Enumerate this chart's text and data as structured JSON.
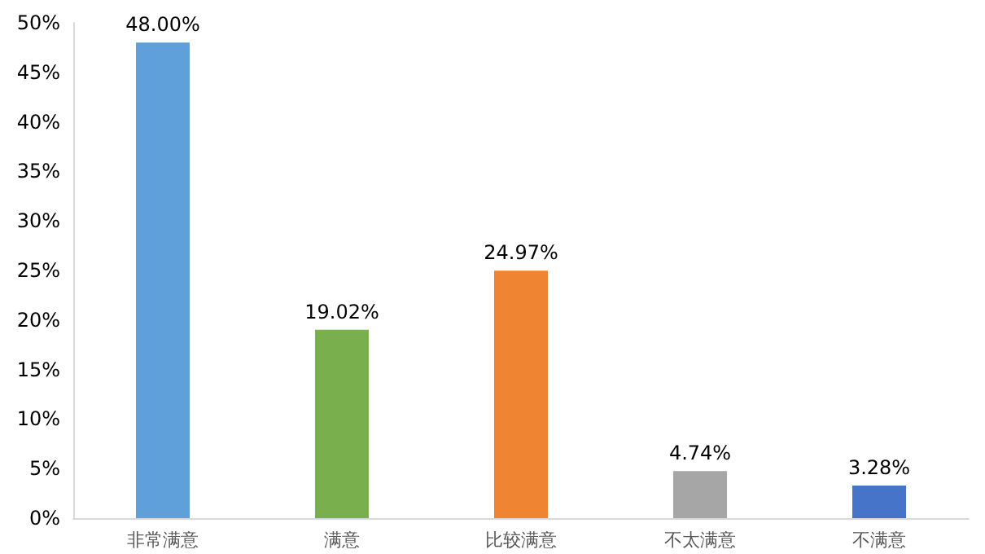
{
  "chart_data": {
    "type": "bar",
    "categories": [
      "非常满意",
      "满意",
      "比较满意",
      "不太满意",
      "不满意"
    ],
    "values": [
      48.0,
      19.02,
      24.97,
      4.74,
      3.28
    ],
    "value_labels": [
      "48.00%",
      "19.02%",
      "24.97%",
      "4.74%",
      "3.28%"
    ],
    "colors": [
      "#5fa0da",
      "#79b04d",
      "#ef8433",
      "#a6a6a6",
      "#4674c8"
    ],
    "ylim": [
      0,
      50
    ],
    "yticks": [
      {
        "value": 0,
        "label": "0%"
      },
      {
        "value": 5,
        "label": "5%"
      },
      {
        "value": 10,
        "label": "10%"
      },
      {
        "value": 15,
        "label": "15%"
      },
      {
        "value": 20,
        "label": "20%"
      },
      {
        "value": 25,
        "label": "25%"
      },
      {
        "value": 30,
        "label": "30%"
      },
      {
        "value": 35,
        "label": "35%"
      },
      {
        "value": 40,
        "label": "40%"
      },
      {
        "value": 45,
        "label": "45%"
      },
      {
        "value": 50,
        "label": "50%"
      }
    ],
    "grid": false
  }
}
